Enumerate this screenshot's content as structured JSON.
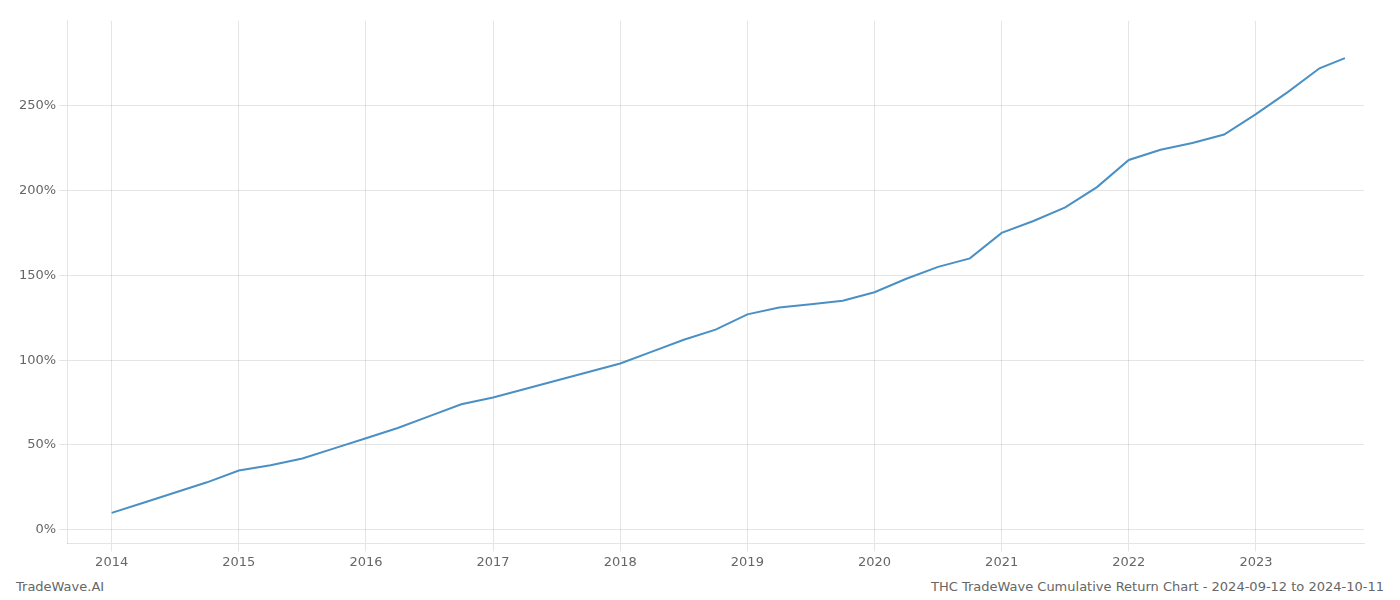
{
  "chart_data": {
    "type": "line",
    "title": "THC TradeWave Cumulative Return Chart - 2024-09-12 to 2024-10-11",
    "annotations": [
      "TradeWave.AI"
    ],
    "x": [
      2014.0,
      2014.25,
      2014.5,
      2014.75,
      2015.0,
      2015.25,
      2015.5,
      2015.75,
      2016.0,
      2016.25,
      2016.5,
      2016.75,
      2017.0,
      2017.25,
      2017.5,
      2017.75,
      2018.0,
      2018.25,
      2018.5,
      2018.75,
      2019.0,
      2019.25,
      2019.5,
      2019.75,
      2020.0,
      2020.25,
      2020.5,
      2020.75,
      2021.0,
      2021.25,
      2021.5,
      2021.75,
      2022.0,
      2022.25,
      2022.5,
      2022.75,
      2023.0,
      2023.25,
      2023.5,
      2023.7
    ],
    "series": [
      {
        "color": "#4a90c4",
        "values": [
          10,
          16,
          22,
          28,
          35,
          38,
          42,
          48,
          54,
          60,
          67,
          74,
          78,
          83,
          88,
          93,
          98,
          105,
          112,
          118,
          127,
          131,
          133,
          135,
          140,
          148,
          155,
          160,
          175,
          182,
          190,
          202,
          218,
          224,
          228,
          233,
          245,
          258,
          272,
          278
        ]
      }
    ],
    "xlim": [
      2013.65,
      2023.85
    ],
    "xticks": [
      2014,
      2015,
      2016,
      2017,
      2018,
      2019,
      2020,
      2021,
      2022,
      2023
    ],
    "ylim": [
      -8,
      300
    ],
    "yticks": [
      {
        "value": 0,
        "label": "0%"
      },
      {
        "value": 50,
        "label": "50%"
      },
      {
        "value": 100,
        "label": "100%"
      },
      {
        "value": 150,
        "label": "150%"
      },
      {
        "value": 200,
        "label": "200%"
      },
      {
        "value": 250,
        "label": "250%"
      }
    ],
    "grid": true
  }
}
